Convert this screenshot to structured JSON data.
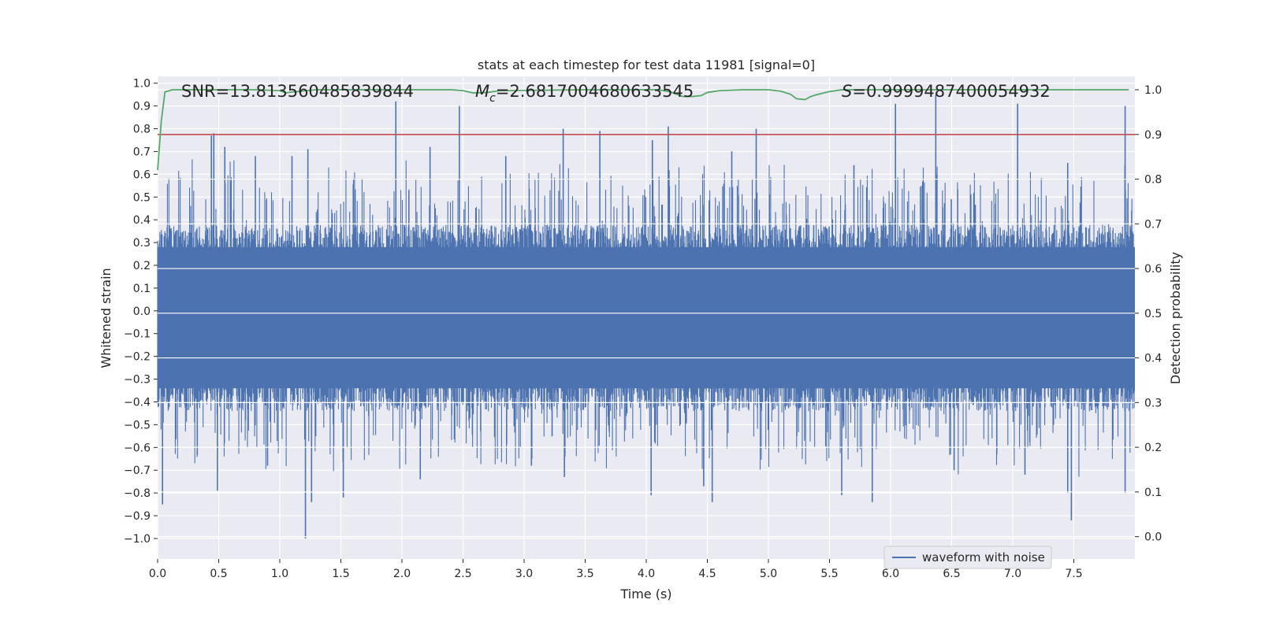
{
  "chart_data": {
    "type": "line",
    "title": "stats at each timestep for test data 11981 [signal=0]",
    "xlabel": "Time (s)",
    "ylabel": "Whitened strain",
    "y2label": "Detection probability",
    "xlim": [
      0.0,
      8.0
    ],
    "ylim": [
      -1.09,
      1.03
    ],
    "y2lim": [
      -0.05,
      1.03
    ],
    "xticks": [
      0.0,
      0.5,
      1.0,
      1.5,
      2.0,
      2.5,
      3.0,
      3.5,
      4.0,
      4.5,
      5.0,
      5.5,
      6.0,
      6.5,
      7.0,
      7.5
    ],
    "xtick_labels": [
      "0.0",
      "0.5",
      "1.0",
      "1.5",
      "2.0",
      "2.5",
      "3.0",
      "3.5",
      "4.0",
      "4.5",
      "5.0",
      "5.5",
      "6.0",
      "6.5",
      "7.0",
      "7.5"
    ],
    "yticks": [
      1.0,
      0.9,
      0.8,
      0.7,
      0.6,
      0.5,
      0.4,
      0.3,
      0.2,
      0.1,
      0.0,
      -0.1,
      -0.2,
      -0.3,
      -0.4,
      -0.5,
      -0.6,
      -0.7,
      -0.8,
      -0.9,
      -1.0
    ],
    "ytick_labels": [
      "1.0",
      "0.9",
      "0.8",
      "0.7",
      "0.6",
      "0.5",
      "0.4",
      "0.3",
      "0.2",
      "0.1",
      "0.0",
      "−0.1",
      "−0.2",
      "−0.3",
      "−0.4",
      "−0.5",
      "−0.6",
      "−0.7",
      "−0.8",
      "−0.9",
      "−1.0"
    ],
    "y2ticks": [
      1.0,
      0.9,
      0.8,
      0.7,
      0.6,
      0.5,
      0.4,
      0.3,
      0.2,
      0.1,
      0.0
    ],
    "y2tick_labels": [
      "1.0",
      "0.9",
      "0.8",
      "0.7",
      "0.6",
      "0.5",
      "0.4",
      "0.3",
      "0.2",
      "0.1",
      "0.0"
    ],
    "annotations": {
      "snr": "SNR=13.813560485839844",
      "mc_symbol": "M",
      "mc_sub": "c",
      "mc_value": "=2.6817004680633545",
      "s_symbol": "S",
      "s_value": "=0.9999487400054932"
    },
    "threshold": {
      "value": 0.9,
      "axis": "right",
      "color": "#c44e52"
    },
    "legend": {
      "position": "lower-right",
      "entries": [
        {
          "label": "waveform with noise",
          "color": "#4c72b0"
        }
      ]
    },
    "series": [
      {
        "name": "waveform with noise",
        "axis": "left",
        "color": "#4c72b0",
        "style": "dense noise envelope",
        "t_range": [
          0.0,
          8.0
        ],
        "typical_envelope": [
          -0.42,
          0.36
        ],
        "peaks_positive": [
          [
            0.44,
            0.77
          ],
          [
            0.46,
            0.78
          ],
          [
            0.55,
            0.72
          ],
          [
            0.8,
            0.68
          ],
          [
            1.1,
            0.68
          ],
          [
            1.23,
            0.71
          ],
          [
            1.95,
            0.92
          ],
          [
            2.23,
            0.72
          ],
          [
            2.47,
            0.9
          ],
          [
            2.85,
            0.68
          ],
          [
            3.32,
            0.8
          ],
          [
            3.62,
            0.79
          ],
          [
            4.05,
            0.75
          ],
          [
            4.18,
            0.81
          ],
          [
            4.7,
            0.7
          ],
          [
            4.9,
            0.8
          ],
          [
            5.7,
            0.64
          ],
          [
            6.04,
            0.91
          ],
          [
            6.37,
            0.95
          ],
          [
            7.04,
            0.91
          ],
          [
            7.45,
            0.65
          ],
          [
            7.92,
            0.9
          ]
        ],
        "peaks_negative": [
          [
            0.04,
            -0.85
          ],
          [
            0.49,
            -0.79
          ],
          [
            0.9,
            -0.68
          ],
          [
            1.21,
            -1.0
          ],
          [
            1.26,
            -0.84
          ],
          [
            1.52,
            -0.82
          ],
          [
            2.15,
            -0.74
          ],
          [
            3.06,
            -0.68
          ],
          [
            3.33,
            -0.73
          ],
          [
            4.04,
            -0.81
          ],
          [
            4.47,
            -0.77
          ],
          [
            4.54,
            -0.84
          ],
          [
            5.6,
            -0.81
          ],
          [
            5.85,
            -0.84
          ],
          [
            6.52,
            -0.7
          ],
          [
            7.1,
            -0.72
          ],
          [
            7.45,
            -0.8
          ],
          [
            7.48,
            -0.92
          ],
          [
            7.92,
            -0.8
          ]
        ]
      },
      {
        "name": "detection probability",
        "axis": "right",
        "color": "#55a868",
        "x": [
          0.0,
          0.03,
          0.06,
          0.12,
          0.3,
          0.8,
          1.0,
          1.05,
          1.1,
          1.3,
          2.0,
          2.4,
          2.5,
          2.58,
          2.7,
          2.8,
          3.5,
          4.1,
          4.2,
          4.3,
          4.38,
          4.45,
          4.5,
          4.6,
          4.8,
          5.0,
          5.1,
          5.18,
          5.23,
          5.3,
          5.34,
          5.38,
          5.5,
          5.6,
          6.0,
          7.0,
          7.95
        ],
        "y": [
          0.82,
          0.93,
          0.995,
          1.0,
          1.0,
          1.0,
          0.998,
          0.993,
          0.995,
          1.0,
          1.0,
          1.0,
          0.998,
          0.993,
          0.994,
          0.998,
          1.0,
          1.0,
          0.995,
          0.985,
          0.985,
          0.987,
          0.994,
          0.998,
          1.0,
          1.0,
          0.997,
          0.99,
          0.98,
          0.978,
          0.984,
          0.988,
          0.996,
          1.0,
          1.0,
          1.0,
          1.0
        ]
      }
    ],
    "background_color": "#eaeaf2",
    "grid": true
  }
}
